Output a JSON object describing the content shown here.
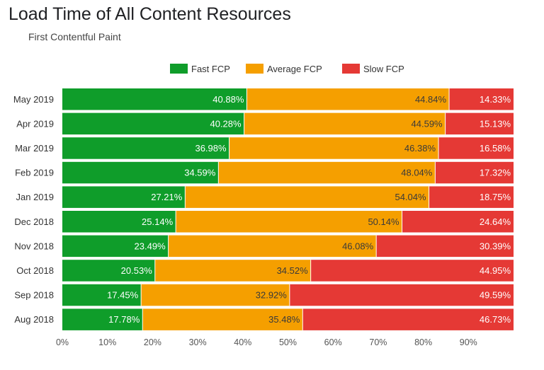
{
  "header": {
    "title": "Load Time of All Content Resources",
    "subtitle": "First Contentful Paint"
  },
  "chart_data": {
    "type": "bar",
    "orientation": "horizontal",
    "stacked": true,
    "title": "Load Time of All Content Resources",
    "subtitle": "First Contentful Paint",
    "xlabel": "",
    "ylabel": "",
    "xlim": [
      0,
      100
    ],
    "x_ticks": [
      "0%",
      "10%",
      "20%",
      "30%",
      "40%",
      "50%",
      "60%",
      "70%",
      "80%",
      "90%"
    ],
    "x_tick_values": [
      0,
      10,
      20,
      30,
      40,
      50,
      60,
      70,
      80,
      90
    ],
    "legend_position": "top-center",
    "categories": [
      "May 2019",
      "Apr 2019",
      "Mar 2019",
      "Feb 2019",
      "Jan 2019",
      "Dec 2018",
      "Nov 2018",
      "Oct 2018",
      "Sep 2018",
      "Aug 2018"
    ],
    "series": [
      {
        "name": "Fast FCP",
        "color": "#0f9d2a",
        "label_color": "#ffffff",
        "values": [
          40.88,
          40.28,
          36.98,
          34.59,
          27.21,
          25.14,
          23.49,
          20.53,
          17.45,
          17.78
        ],
        "labels": [
          "40.88%",
          "40.28%",
          "36.98%",
          "34.59%",
          "27.21%",
          "25.14%",
          "23.49%",
          "20.53%",
          "17.45%",
          "17.78%"
        ]
      },
      {
        "name": "Average FCP",
        "color": "#f59f00",
        "label_color": "#3a3a3a",
        "values": [
          44.84,
          44.59,
          46.38,
          48.04,
          54.04,
          50.14,
          46.08,
          34.52,
          32.92,
          35.48
        ],
        "labels": [
          "44.84%",
          "44.59%",
          "46.38%",
          "48.04%",
          "54.04%",
          "50.14%",
          "46.08%",
          "34.52%",
          "32.92%",
          "35.48%"
        ]
      },
      {
        "name": "Slow FCP",
        "color": "#e53935",
        "label_color": "#ffffff",
        "values": [
          14.33,
          15.13,
          16.58,
          17.32,
          18.75,
          24.64,
          30.39,
          44.95,
          49.59,
          46.73
        ],
        "labels": [
          "14.33%",
          "15.13%",
          "16.58%",
          "17.32%",
          "18.75%",
          "24.64%",
          "30.39%",
          "44.95%",
          "49.59%",
          "46.73%"
        ]
      }
    ]
  }
}
